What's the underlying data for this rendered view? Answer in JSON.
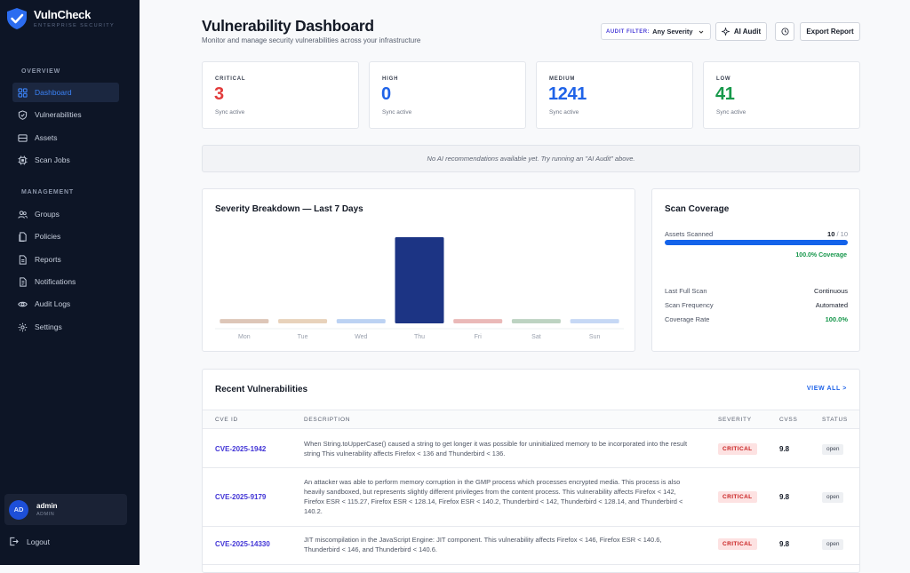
{
  "brand": {
    "name": "VulnCheck",
    "tagline": "ENTERPRISE SECURITY"
  },
  "sidebar": {
    "overview_label": "OVERVIEW",
    "management_label": "MANAGEMENT",
    "items": [
      {
        "label": "Dashboard",
        "icon": "dashboard-icon",
        "active": true
      },
      {
        "label": "Vulnerabilities",
        "icon": "shield-icon"
      },
      {
        "label": "Assets",
        "icon": "database-icon"
      },
      {
        "label": "Scan Jobs",
        "icon": "cpu-icon"
      },
      {
        "label": "Groups",
        "icon": "users-icon"
      },
      {
        "label": "Policies",
        "icon": "document-icon"
      },
      {
        "label": "Reports",
        "icon": "report-icon"
      },
      {
        "label": "Notifications",
        "icon": "bell-icon"
      },
      {
        "label": "Audit Logs",
        "icon": "eye-icon"
      },
      {
        "label": "Settings",
        "icon": "gear-icon"
      }
    ],
    "user": {
      "initials": "AD",
      "name": "admin",
      "role": "ADMIN"
    },
    "logout": "Logout"
  },
  "header": {
    "title": "Vulnerability Dashboard",
    "subtitle": "Monitor and manage security vulnerabilities across your infrastructure",
    "filter_label": "AUDIT FILTER:",
    "filter_value": "Any Severity",
    "ai_audit": "AI Audit",
    "export": "Export Report"
  },
  "stats": [
    {
      "label": "CRITICAL",
      "value": "3",
      "sync": "Sync active",
      "color": "#e23b3b"
    },
    {
      "label": "HIGH",
      "value": "0",
      "sync": "Sync active",
      "color": "#1f63e8"
    },
    {
      "label": "MEDIUM",
      "value": "1241",
      "sync": "Sync active",
      "color": "#1f63e8"
    },
    {
      "label": "LOW",
      "value": "41",
      "sync": "Sync active",
      "color": "#17994b"
    }
  ],
  "ai_notice": "No AI recommendations available yet. Try running an \"AI Audit\" above.",
  "severity_chart": {
    "title": "Severity Breakdown — Last 7 Days"
  },
  "chart_data": {
    "type": "bar",
    "title": "Severity Breakdown — Last 7 Days",
    "categories": [
      "Mon",
      "Tue",
      "Wed",
      "Thu",
      "Fri",
      "Sat",
      "Sun"
    ],
    "values": [
      0.05,
      0.05,
      0.05,
      1,
      0.05,
      0.05,
      0.05
    ],
    "colors": [
      "#ddc6b8",
      "#e8d2bb",
      "#bcd2f3",
      "#1c3484",
      "#eab9b8",
      "#bdd3c2",
      "#c6d8f5"
    ],
    "ylim": [
      0,
      1
    ],
    "grid": false
  },
  "coverage": {
    "title": "Scan Coverage",
    "assets_label": "Assets Scanned",
    "assets_scanned": "10",
    "assets_sep": "/ 10",
    "progress": 1.0,
    "coverage_text": "100.0% Coverage",
    "rows": [
      {
        "label": "Last Full Scan",
        "value": "Continuous"
      },
      {
        "label": "Scan Frequency",
        "value": "Automated"
      },
      {
        "label": "Coverage Rate",
        "value": "100.0%"
      }
    ]
  },
  "recent": {
    "title": "Recent Vulnerabilities",
    "view_all": "VIEW ALL >",
    "columns": [
      "CVE ID",
      "DESCRIPTION",
      "SEVERITY",
      "CVSS",
      "STATUS"
    ],
    "rows": [
      {
        "cve": "CVE-2025-1942",
        "description": "When String.toUpperCase() caused a string to get longer it was possible for uninitialized memory to be incorporated into the result string This vulnerability affects Firefox < 136 and Thunderbird < 136.",
        "severity": "CRITICAL",
        "cvss": "9.8",
        "status": "open"
      },
      {
        "cve": "CVE-2025-9179",
        "description": "An attacker was able to perform memory corruption in the GMP process which processes encrypted media. This process is also heavily sandboxed, but represents slightly different privileges from the content process. This vulnerability affects Firefox < 142, Firefox ESR < 115.27, Firefox ESR < 128.14, Firefox ESR < 140.2, Thunderbird < 142, Thunderbird < 128.14, and Thunderbird < 140.2.",
        "severity": "CRITICAL",
        "cvss": "9.8",
        "status": "open"
      },
      {
        "cve": "CVE-2025-14330",
        "description": "JIT miscompilation in the JavaScript Engine: JIT component. This vulnerability affects Firefox < 146, Firefox ESR < 140.6, Thunderbird < 146, and Thunderbird < 140.6.",
        "severity": "CRITICAL",
        "cvss": "9.8",
        "status": "open"
      }
    ]
  }
}
